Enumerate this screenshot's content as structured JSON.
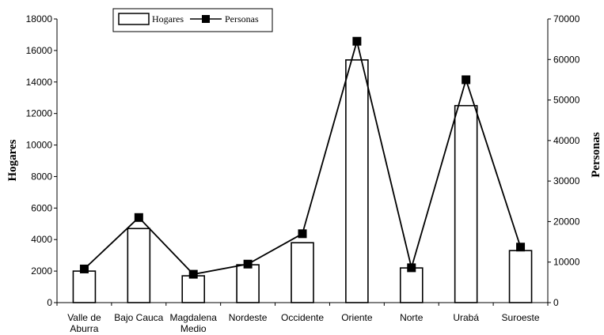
{
  "chart_data": {
    "type": "bar-line-combo",
    "categories": [
      "Valle de Aburra",
      "Bajo Cauca",
      "Magdalena Medio",
      "Nordeste",
      "Occidente",
      "Oriente",
      "Norte",
      "Urabá",
      "Suroeste"
    ],
    "category_lines": [
      [
        "Valle de",
        "Aburra"
      ],
      [
        "Bajo Cauca"
      ],
      [
        "Magdalena",
        "Medio"
      ],
      [
        "Nordeste"
      ],
      [
        "Occidente"
      ],
      [
        "Oriente"
      ],
      [
        "Norte"
      ],
      [
        "Urabá"
      ],
      [
        "Suroeste"
      ]
    ],
    "series": [
      {
        "name": "Hogares",
        "type": "bar",
        "axis": "left",
        "values": [
          2000,
          4700,
          1700,
          2400,
          3800,
          15400,
          2200,
          12500,
          3300
        ]
      },
      {
        "name": "Personas",
        "type": "line",
        "axis": "right",
        "marker": "square",
        "values": [
          8300,
          21000,
          7000,
          9500,
          17000,
          64500,
          8600,
          55000,
          13700
        ]
      }
    ],
    "ylabel_left": "Hogares",
    "ylabel_right": "Personas",
    "ylim_left": [
      0,
      18000
    ],
    "ylim_right": [
      0,
      70000
    ],
    "yticks_left": [
      0,
      2000,
      4000,
      6000,
      8000,
      10000,
      12000,
      14000,
      16000,
      18000
    ],
    "yticks_right": [
      0,
      10000,
      20000,
      30000,
      40000,
      50000,
      60000,
      70000
    ],
    "legend_position": "top-left",
    "grid": false
  },
  "colors": {
    "bar_fill": "#ffffff",
    "bar_stroke": "#000000",
    "line": "#000000",
    "marker": "#000000"
  }
}
